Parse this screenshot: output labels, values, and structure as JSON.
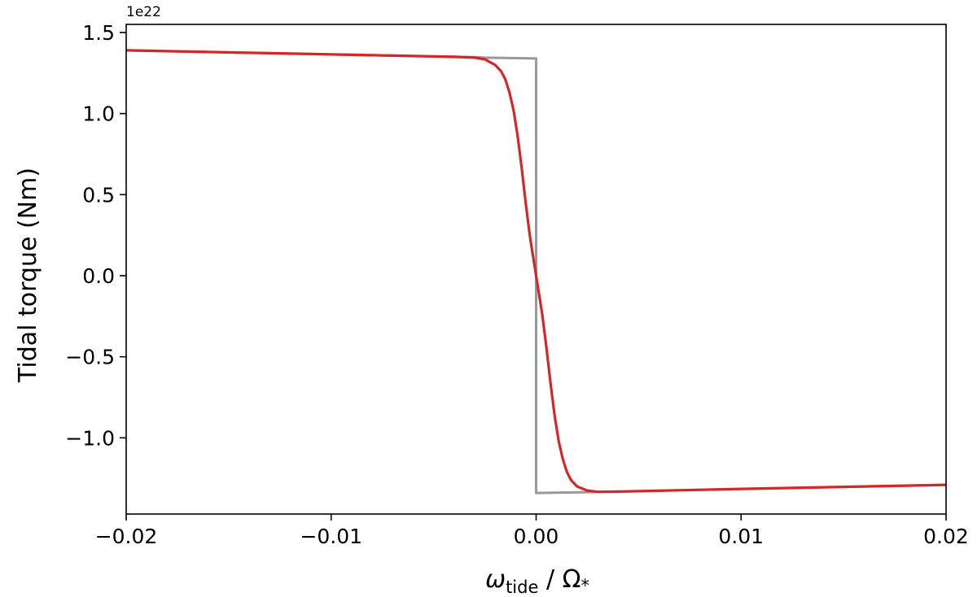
{
  "chart_data": {
    "type": "line",
    "ylabel": "Tidal torque (Nm)",
    "xlabel": {
      "omega": "ω",
      "sub": "tide",
      "sep": " / ",
      "Omega": "Ω",
      "star": "*"
    },
    "offset_text": "1e22",
    "xlim": [
      -0.02,
      0.02
    ],
    "ylim": [
      -1.47,
      1.55
    ],
    "y_scale_factor": 1e+22,
    "x_ticks": [
      {
        "value": -0.02,
        "label": "−0.02"
      },
      {
        "value": -0.01,
        "label": "−0.01"
      },
      {
        "value": 0.0,
        "label": "0.00"
      },
      {
        "value": 0.01,
        "label": "0.01"
      },
      {
        "value": 0.02,
        "label": "0.02"
      }
    ],
    "y_ticks": [
      {
        "value": -1.0,
        "label": "−1.0"
      },
      {
        "value": -0.5,
        "label": "−0.5"
      },
      {
        "value": 0.0,
        "label": "0.0"
      },
      {
        "value": 0.5,
        "label": "0.5"
      },
      {
        "value": 1.0,
        "label": "1.0"
      },
      {
        "value": 1.5,
        "label": "1.5"
      }
    ],
    "grid": false,
    "legend": "none",
    "series": [
      {
        "color": "#999999",
        "x": [
          -0.02,
          -0.01,
          -0.003,
          -0.0025,
          -1e-05,
          0.0,
          0.0,
          1e-05,
          0.0025,
          0.003,
          0.01,
          0.02
        ],
        "y": [
          1.39,
          1.365,
          1.348,
          1.345,
          1.34,
          1.34,
          -1.34,
          -1.34,
          -1.335,
          -1.333,
          -1.315,
          -1.29
        ]
      },
      {
        "color": "#d62728",
        "x": [
          -0.02,
          -0.01,
          -0.004,
          -0.003,
          -0.0025,
          -0.002,
          -0.0017,
          -0.0015,
          -0.0013,
          -0.0011,
          -0.0009,
          -0.0007,
          -0.0005,
          -0.0003,
          -0.0001,
          0.0,
          0.0001,
          0.0003,
          0.0005,
          0.0007,
          0.0009,
          0.0011,
          0.0013,
          0.0015,
          0.0017,
          0.002,
          0.0025,
          0.003,
          0.004,
          0.01,
          0.02
        ],
        "y": [
          1.39,
          1.365,
          1.35,
          1.345,
          1.335,
          1.3,
          1.26,
          1.21,
          1.13,
          1.02,
          0.86,
          0.66,
          0.44,
          0.24,
          0.08,
          0.0,
          -0.08,
          -0.24,
          -0.44,
          -0.66,
          -0.86,
          -1.02,
          -1.13,
          -1.21,
          -1.26,
          -1.3,
          -1.325,
          -1.333,
          -1.332,
          -1.315,
          -1.29
        ]
      }
    ]
  }
}
